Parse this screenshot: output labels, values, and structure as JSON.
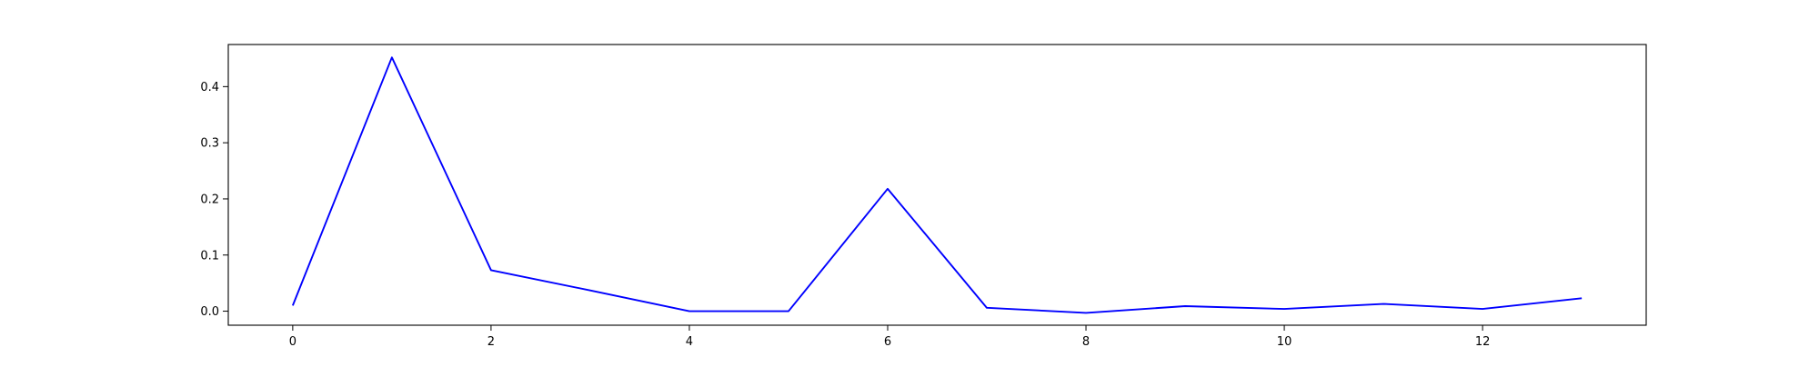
{
  "chart_data": {
    "type": "line",
    "title": "",
    "xlabel": "",
    "ylabel": "",
    "xlim": [
      -0.65,
      13.65
    ],
    "ylim": [
      -0.025,
      0.475
    ],
    "x_ticks": [
      0,
      2,
      4,
      6,
      8,
      10,
      12
    ],
    "x_tick_labels": [
      "0",
      "2",
      "4",
      "6",
      "8",
      "10",
      "12"
    ],
    "y_ticks": [
      0.0,
      0.1,
      0.2,
      0.3,
      0.4
    ],
    "y_tick_labels": [
      "0.0",
      "0.1",
      "0.2",
      "0.3",
      "0.4"
    ],
    "grid": false,
    "legend": "none",
    "series": [
      {
        "color": "#0000ff",
        "x": [
          0,
          1,
          2,
          3,
          4,
          5,
          6,
          7,
          8,
          9,
          10,
          11,
          12,
          13
        ],
        "values": [
          0.01,
          0.452,
          0.073,
          0.037,
          0.0,
          0.0,
          0.218,
          0.006,
          -0.003,
          0.009,
          0.004,
          0.013,
          0.004,
          0.023
        ]
      }
    ]
  }
}
